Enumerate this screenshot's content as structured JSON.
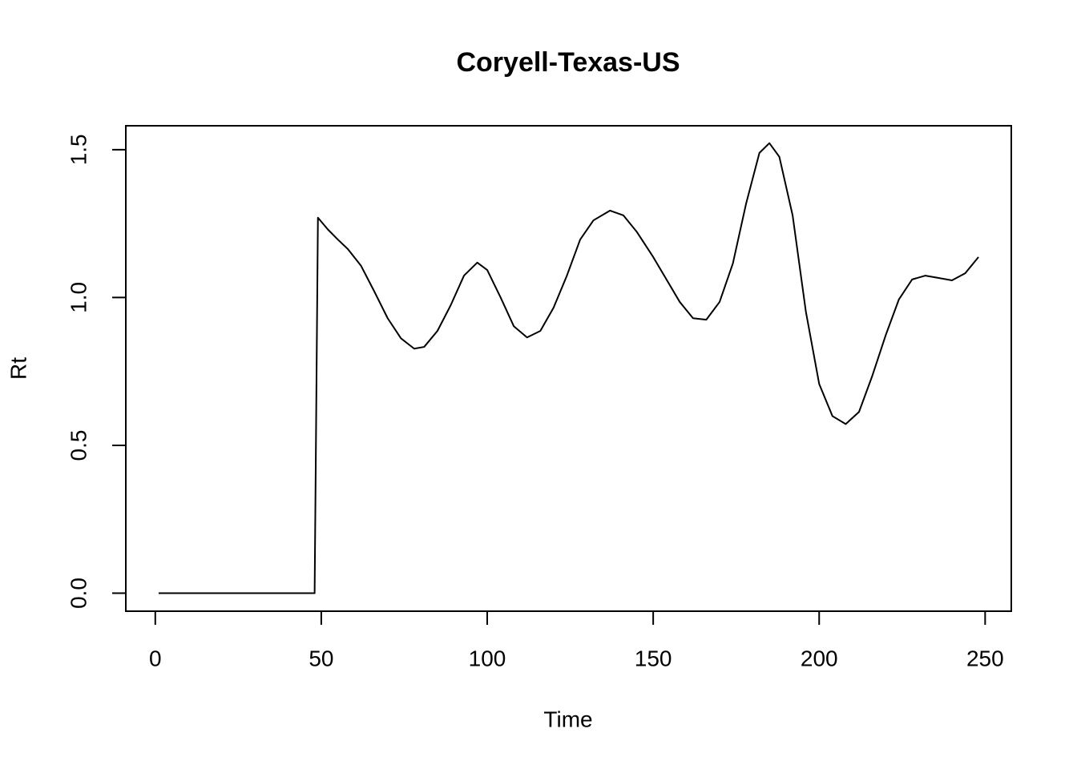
{
  "chart_data": {
    "type": "line",
    "title": "Coryell-Texas-US",
    "xlabel": "Time",
    "ylabel": "Rt",
    "x": [
      1,
      48,
      49,
      52,
      55,
      58,
      62,
      66,
      70,
      74,
      78,
      81,
      85,
      89,
      93,
      97,
      100,
      104,
      108,
      112,
      116,
      120,
      124,
      128,
      132,
      137,
      141,
      145,
      150,
      154,
      158,
      162,
      166,
      170,
      174,
      178,
      182,
      185,
      188,
      192,
      196,
      200,
      204,
      208,
      212,
      216,
      220,
      224,
      228,
      232,
      236,
      240,
      244,
      248
    ],
    "series": [
      {
        "name": "Rt",
        "color": "#000000",
        "values": [
          0,
          0,
          1.27,
          1.23,
          1.196,
          1.164,
          1.107,
          1.02,
          0.93,
          0.862,
          0.827,
          0.833,
          0.887,
          0.974,
          1.074,
          1.118,
          1.093,
          1.001,
          0.903,
          0.865,
          0.887,
          0.966,
          1.074,
          1.196,
          1.261,
          1.294,
          1.278,
          1.223,
          1.137,
          1.061,
          0.985,
          0.93,
          0.925,
          0.985,
          1.115,
          1.318,
          1.489,
          1.522,
          1.476,
          1.278,
          0.952,
          0.708,
          0.599,
          0.572,
          0.613,
          0.735,
          0.871,
          0.993,
          1.061,
          1.074,
          1.066,
          1.058,
          1.082,
          1.137
        ]
      }
    ],
    "xlim": [
      -8.88,
      257.88
    ],
    "ylim": [
      -0.0608,
      1.5808
    ],
    "xticks": [
      0,
      50,
      100,
      150,
      200,
      250
    ],
    "yticks": [
      {
        "value": 0,
        "label": "0.0"
      },
      0.5,
      {
        "value": 1,
        "label": "1.0"
      },
      1.5
    ]
  }
}
